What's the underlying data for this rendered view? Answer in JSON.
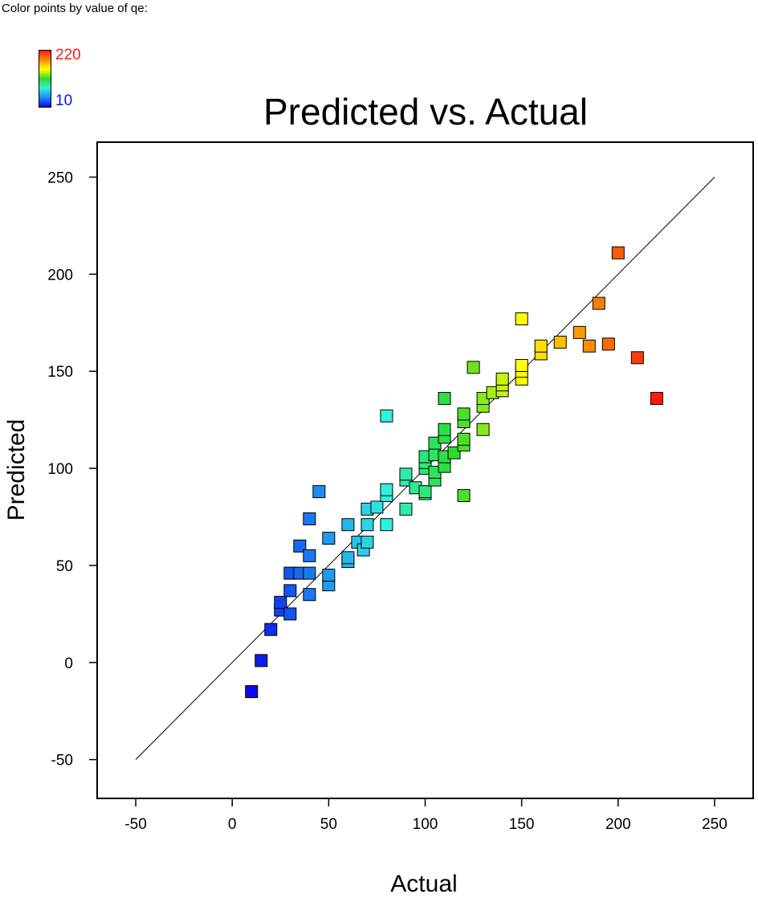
{
  "legend": {
    "title": "Color points  by value of qe:",
    "max_label": "220",
    "min_label": "10",
    "colors": [
      "#ff1a0a",
      "#ff8c00",
      "#ffff00",
      "#2ddc2d",
      "#30f0e0",
      "#1c8cf0",
      "#0a0aee"
    ]
  },
  "chart_data": {
    "type": "scatter",
    "title": "Predicted vs. Actual",
    "xlabel": "Actual",
    "ylabel": "Predicted",
    "xlim": [
      -70,
      270
    ],
    "ylim": [
      -70,
      268
    ],
    "xticks": [
      -50,
      0,
      50,
      100,
      150,
      200,
      250
    ],
    "yticks": [
      -50,
      0,
      50,
      100,
      150,
      200,
      250
    ],
    "reference_line": {
      "from": [
        -50,
        -50
      ],
      "to": [
        250,
        250
      ]
    },
    "color_range": [
      10,
      220
    ],
    "points": [
      {
        "x": 10,
        "y": -15
      },
      {
        "x": 15,
        "y": 1
      },
      {
        "x": 20,
        "y": 17
      },
      {
        "x": 25,
        "y": 27
      },
      {
        "x": 25,
        "y": 31
      },
      {
        "x": 30,
        "y": 25
      },
      {
        "x": 30,
        "y": 37
      },
      {
        "x": 30,
        "y": 46
      },
      {
        "x": 35,
        "y": 46
      },
      {
        "x": 35,
        "y": 60
      },
      {
        "x": 40,
        "y": 35
      },
      {
        "x": 40,
        "y": 46
      },
      {
        "x": 40,
        "y": 55
      },
      {
        "x": 40,
        "y": 74
      },
      {
        "x": 45,
        "y": 88
      },
      {
        "x": 50,
        "y": 40
      },
      {
        "x": 50,
        "y": 45
      },
      {
        "x": 50,
        "y": 64
      },
      {
        "x": 60,
        "y": 52
      },
      {
        "x": 60,
        "y": 54
      },
      {
        "x": 60,
        "y": 71
      },
      {
        "x": 65,
        "y": 62
      },
      {
        "x": 68,
        "y": 58
      },
      {
        "x": 70,
        "y": 62
      },
      {
        "x": 70,
        "y": 71
      },
      {
        "x": 70,
        "y": 79
      },
      {
        "x": 75,
        "y": 80
      },
      {
        "x": 80,
        "y": 71
      },
      {
        "x": 80,
        "y": 86
      },
      {
        "x": 80,
        "y": 89
      },
      {
        "x": 80,
        "y": 127
      },
      {
        "x": 90,
        "y": 79
      },
      {
        "x": 90,
        "y": 94
      },
      {
        "x": 90,
        "y": 97
      },
      {
        "x": 95,
        "y": 90
      },
      {
        "x": 100,
        "y": 87
      },
      {
        "x": 100,
        "y": 88
      },
      {
        "x": 100,
        "y": 100
      },
      {
        "x": 100,
        "y": 103
      },
      {
        "x": 100,
        "y": 106
      },
      {
        "x": 105,
        "y": 94
      },
      {
        "x": 105,
        "y": 98
      },
      {
        "x": 105,
        "y": 107
      },
      {
        "x": 105,
        "y": 113
      },
      {
        "x": 110,
        "y": 101
      },
      {
        "x": 110,
        "y": 106
      },
      {
        "x": 110,
        "y": 116
      },
      {
        "x": 110,
        "y": 120
      },
      {
        "x": 110,
        "y": 136
      },
      {
        "x": 115,
        "y": 108
      },
      {
        "x": 120,
        "y": 86
      },
      {
        "x": 120,
        "y": 112
      },
      {
        "x": 120,
        "y": 115
      },
      {
        "x": 120,
        "y": 124
      },
      {
        "x": 120,
        "y": 128
      },
      {
        "x": 125,
        "y": 152
      },
      {
        "x": 130,
        "y": 120
      },
      {
        "x": 130,
        "y": 132
      },
      {
        "x": 130,
        "y": 136
      },
      {
        "x": 135,
        "y": 139
      },
      {
        "x": 140,
        "y": 140
      },
      {
        "x": 140,
        "y": 143
      },
      {
        "x": 140,
        "y": 146
      },
      {
        "x": 150,
        "y": 146
      },
      {
        "x": 150,
        "y": 150
      },
      {
        "x": 150,
        "y": 153
      },
      {
        "x": 150,
        "y": 177
      },
      {
        "x": 160,
        "y": 159
      },
      {
        "x": 160,
        "y": 163
      },
      {
        "x": 170,
        "y": 165
      },
      {
        "x": 180,
        "y": 170
      },
      {
        "x": 185,
        "y": 163
      },
      {
        "x": 190,
        "y": 185
      },
      {
        "x": 195,
        "y": 164
      },
      {
        "x": 200,
        "y": 211
      },
      {
        "x": 210,
        "y": 157
      },
      {
        "x": 220,
        "y": 136
      }
    ]
  }
}
